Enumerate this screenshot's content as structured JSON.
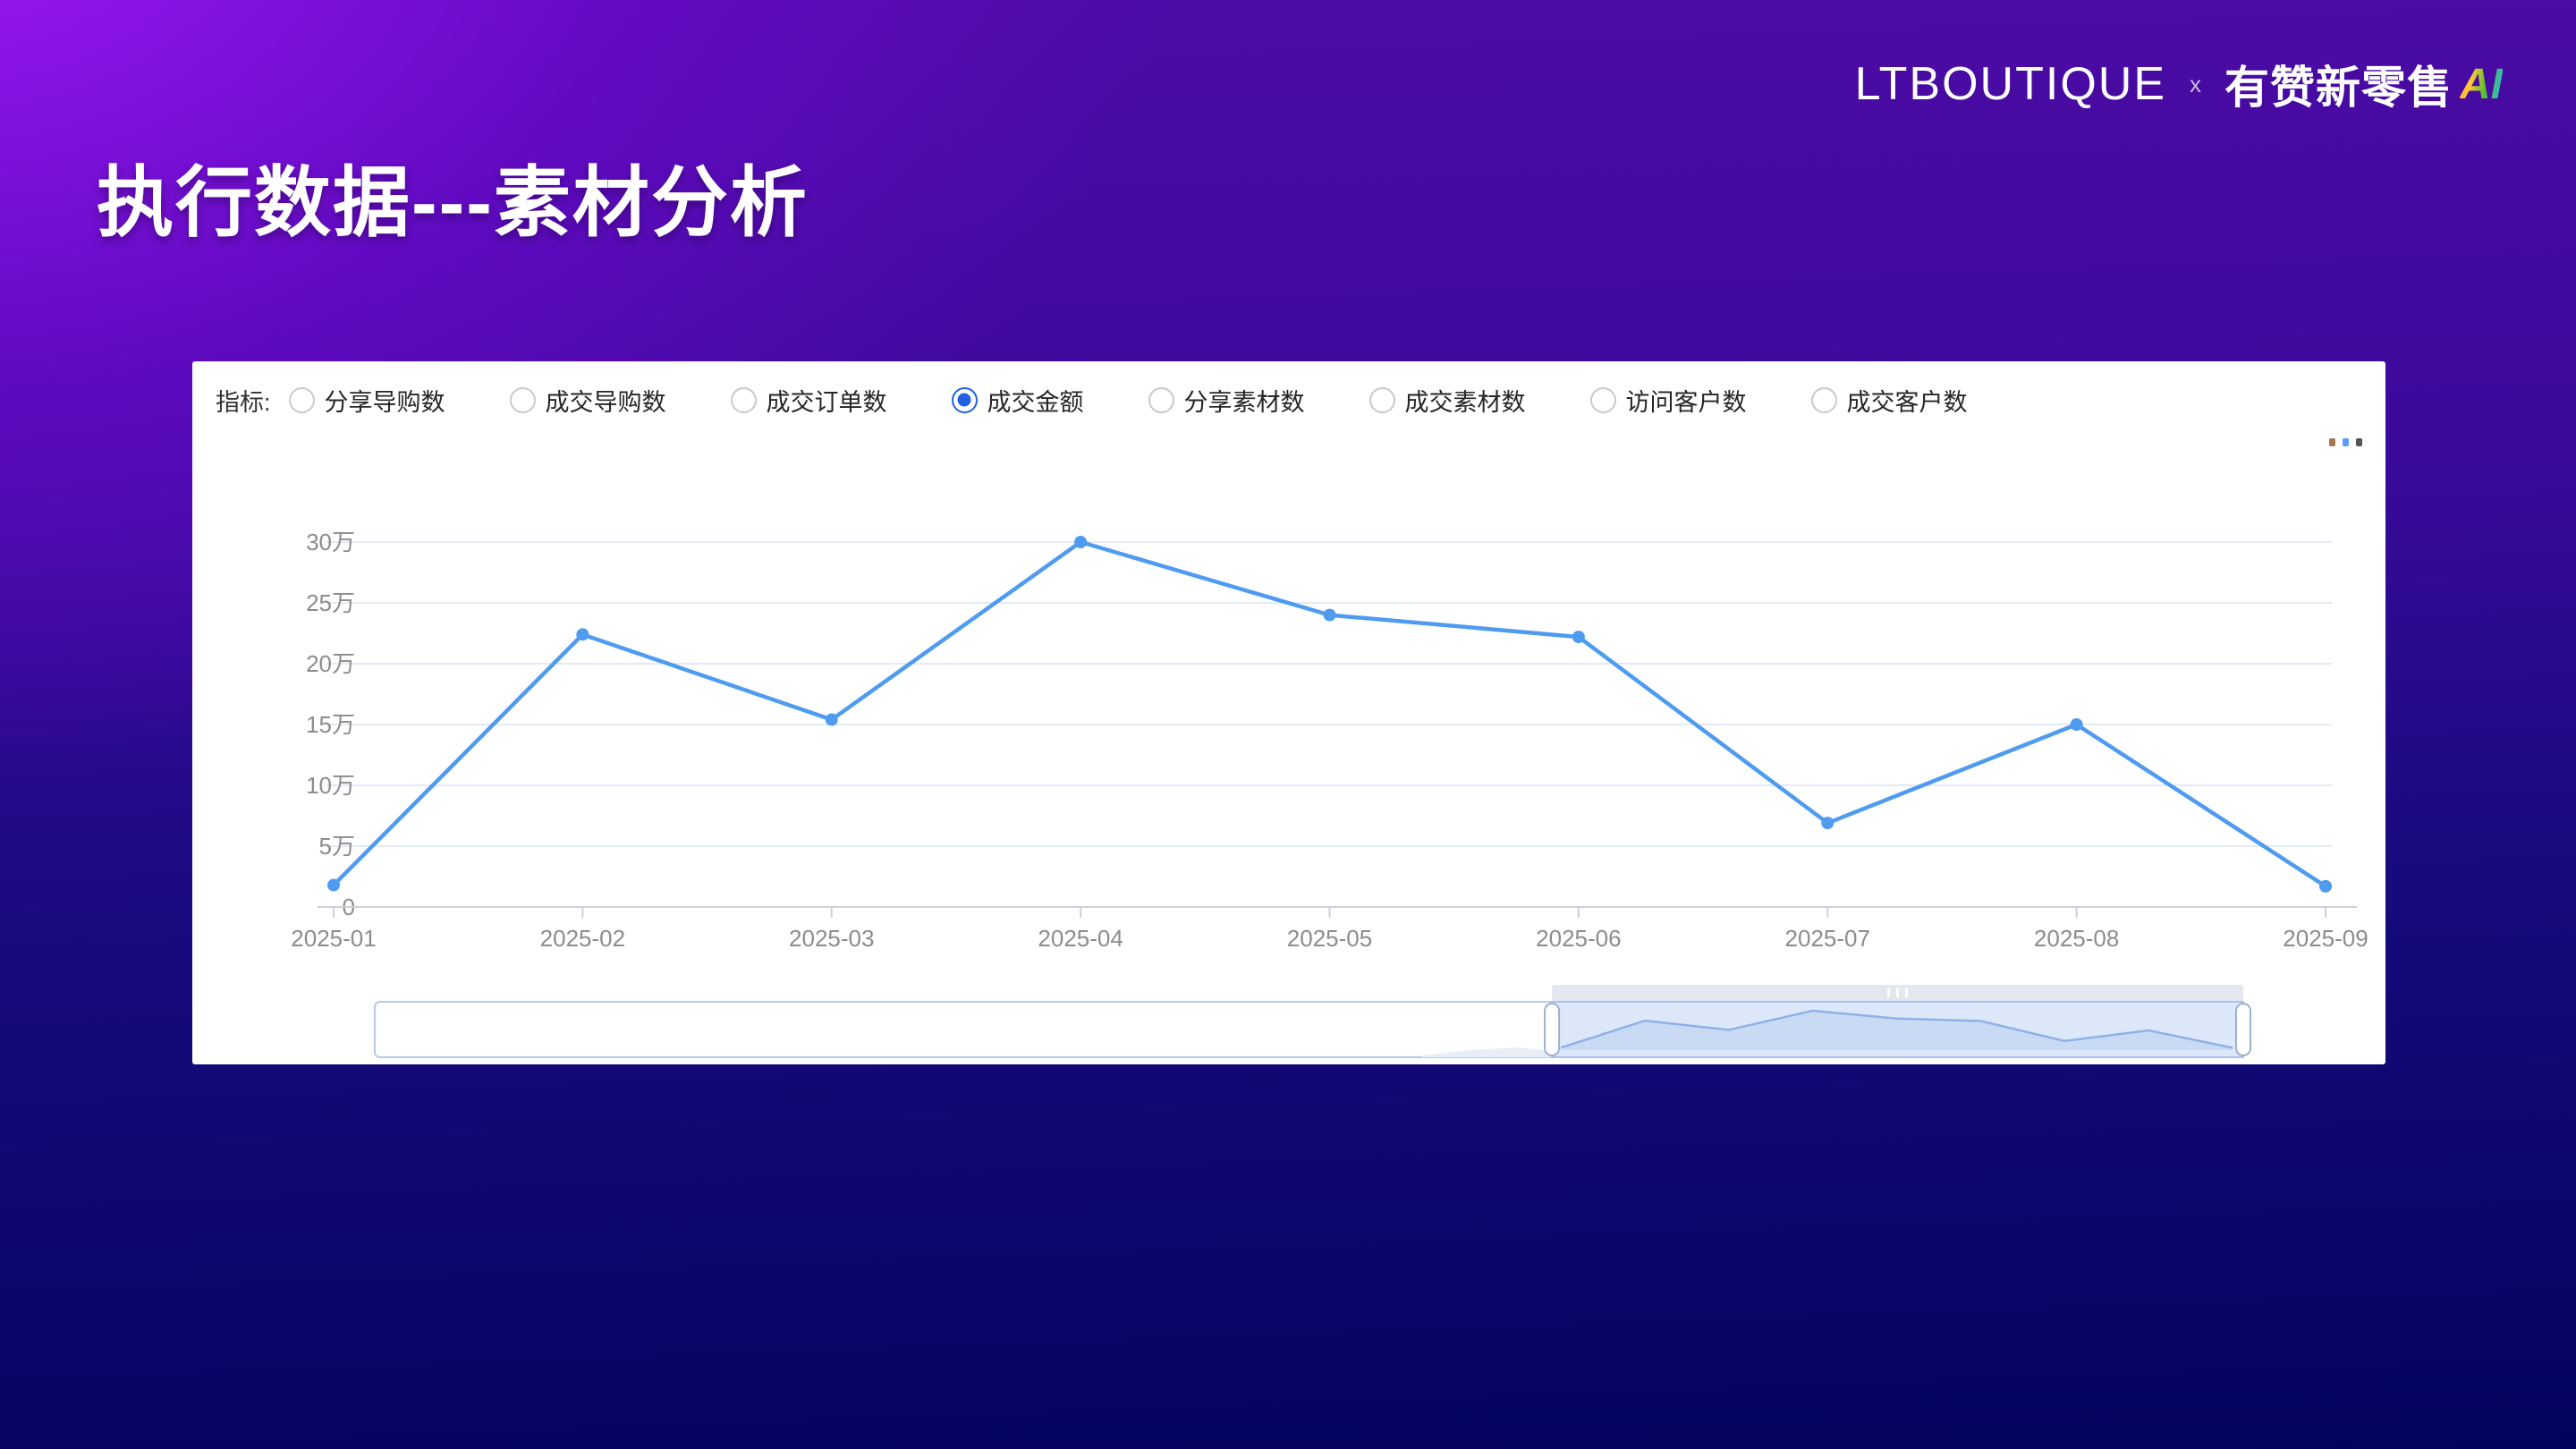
{
  "slide": {
    "title": "执行数据---素材分析",
    "brand": {
      "left": "LTBOUTIQUE",
      "separator": "x",
      "right": "有赞新零售",
      "ai": "AI"
    }
  },
  "panel": {
    "metric_label": "指标:",
    "metrics": [
      {
        "label": "分享导购数",
        "selected": false
      },
      {
        "label": "成交导购数",
        "selected": false
      },
      {
        "label": "成交订单数",
        "selected": false
      },
      {
        "label": "成交金额",
        "selected": true
      },
      {
        "label": "分享素材数",
        "selected": false
      },
      {
        "label": "成交素材数",
        "selected": false
      },
      {
        "label": "访问客户数",
        "selected": false
      },
      {
        "label": "成交客户数",
        "selected": false
      }
    ],
    "more_menu_dots": [
      "#a07a52",
      "#5b9cf5",
      "#555555"
    ]
  },
  "chart_data": {
    "type": "line",
    "title": "",
    "x": [
      "2025-01",
      "2025-02",
      "2025-03",
      "2025-04",
      "2025-05",
      "2025-06",
      "2025-07",
      "2025-08",
      "2025-09"
    ],
    "series": [
      {
        "name": "成交金额",
        "values": [
          1.8,
          22.4,
          15.4,
          30.0,
          24.0,
          22.2,
          6.9,
          15.0,
          1.7
        ]
      }
    ],
    "unit": "万",
    "y_ticks": [
      "30万",
      "25万",
      "20万",
      "15万",
      "10万",
      "5万",
      "0"
    ],
    "ylim": [
      0,
      30
    ],
    "grid": true,
    "legend": "none",
    "line_color": "#4e9bf0",
    "datazoom": {
      "window": [
        0.63,
        1.0
      ]
    }
  },
  "colors": {
    "accent_blue": "#4e9bf0",
    "radio_selected": "#2160e0",
    "grid_line": "#e4eaf4",
    "axis_line": "#ccd0d9",
    "tick_label": "#8c8c8c",
    "zoom_window_fill": "#dce8fa",
    "zoom_window_border": "#aac1ea",
    "zoom_area_fill": "#c9daf5",
    "zoom_area_line": "#8fb1e8",
    "zoom_track_border": "#b9c9e8",
    "zoom_movebar": "#e4e7ee"
  }
}
